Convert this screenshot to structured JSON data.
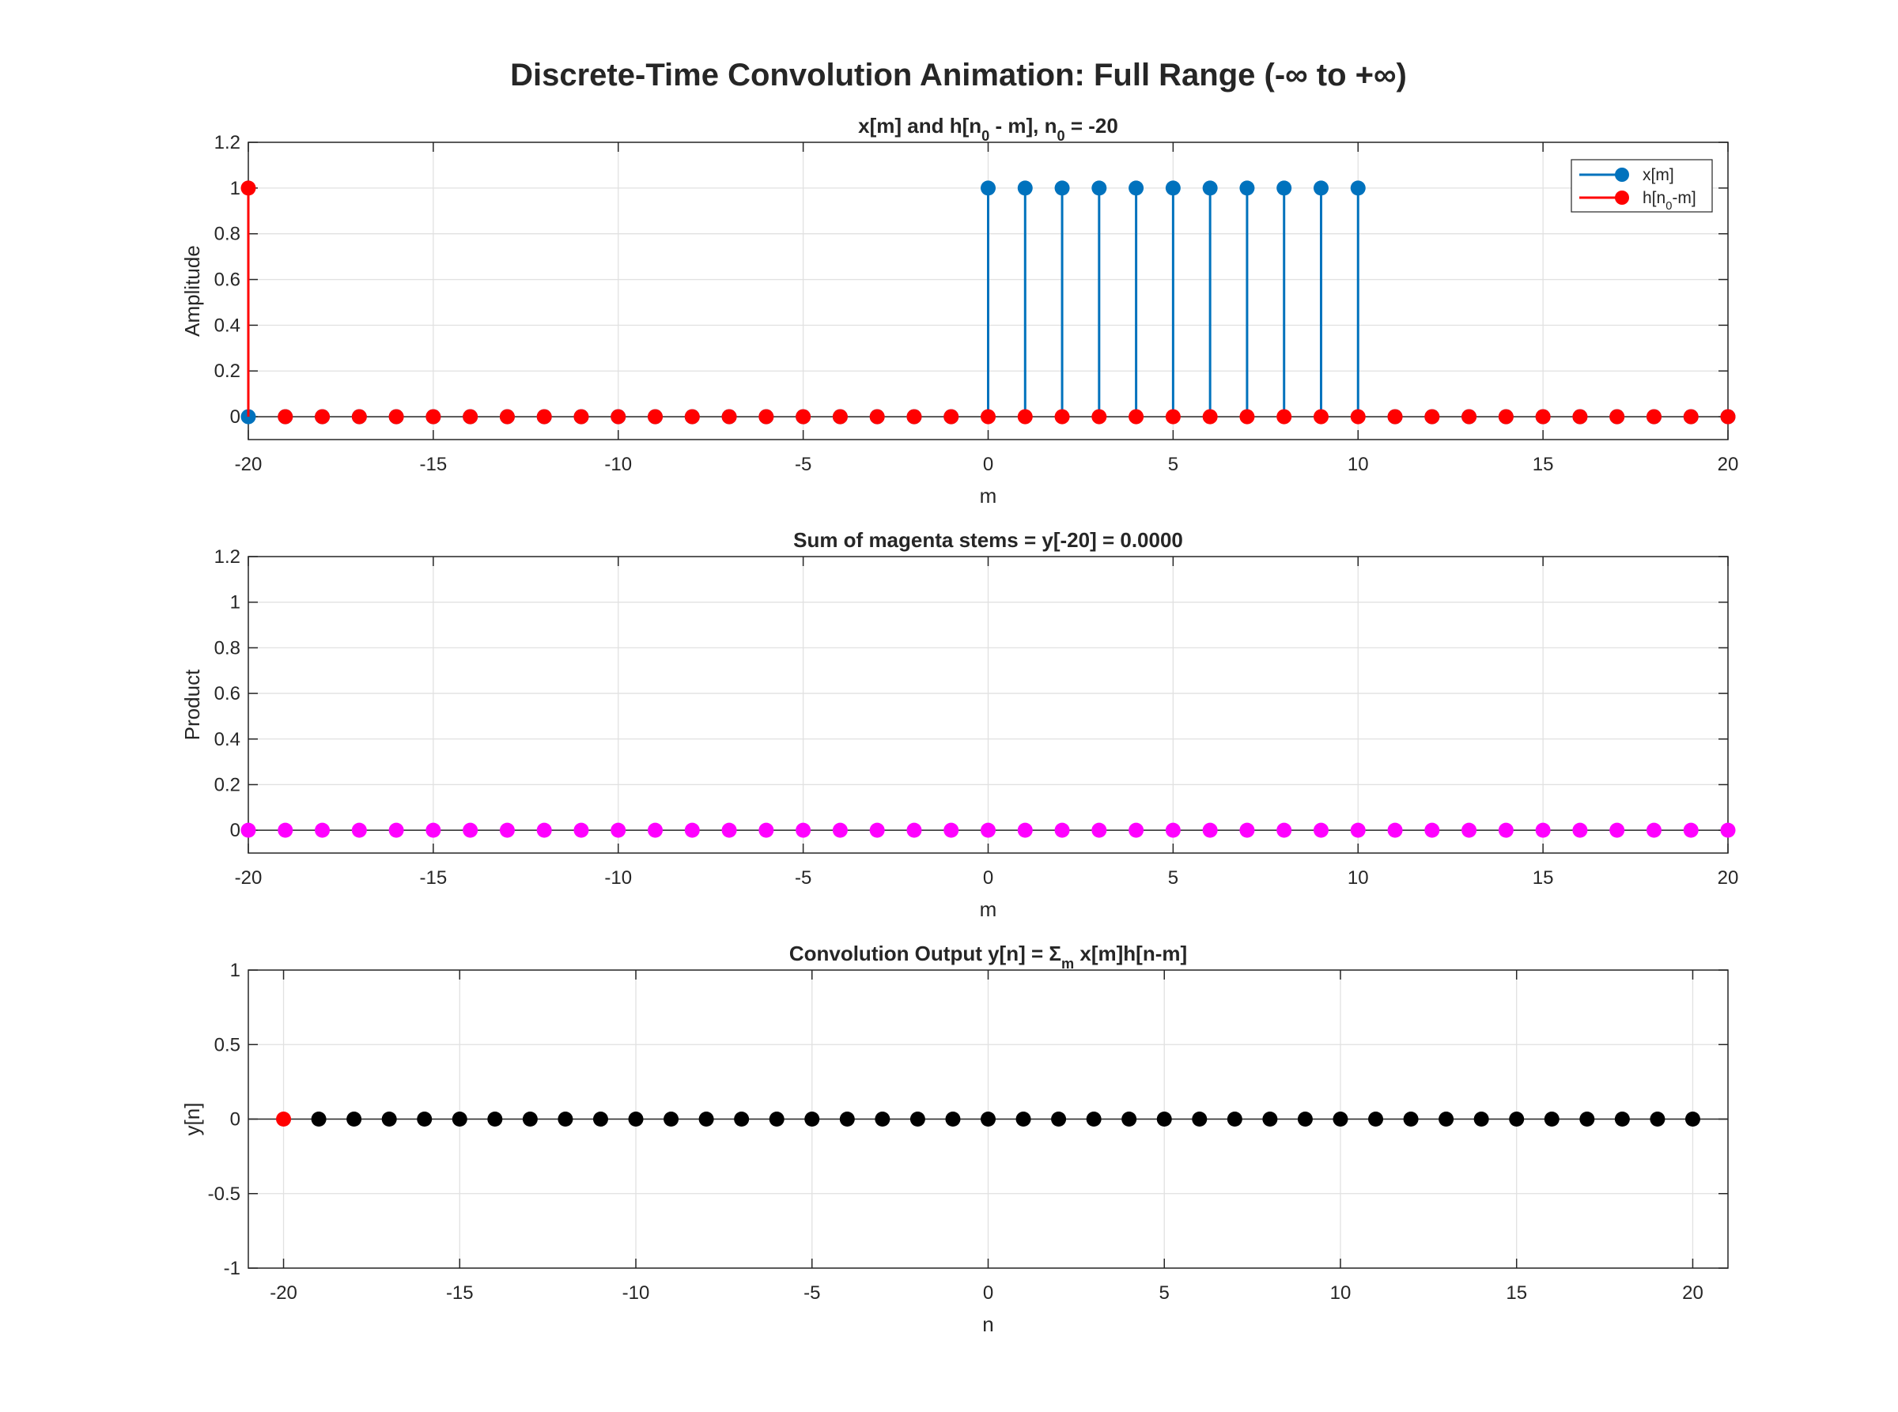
{
  "figure": {
    "title": "Discrete-Time Convolution Animation: Full Range (-∞ to +∞)"
  },
  "colors": {
    "x_series": "#0072BD",
    "h_series": "#FF0000",
    "product": "#FF00FF",
    "output": "#000000",
    "output_current": "#FF0000",
    "baseline": "#262626"
  },
  "chart_data": [
    {
      "id": "signals",
      "type": "stem",
      "title": {
        "pre": "x[m]  and  h[n",
        "sub": "0",
        "post": "  -  m],    n",
        "sub2": "0",
        "post2": "  =  -20"
      },
      "xlabel": "m",
      "ylabel": "Amplitude",
      "xlim": [
        -20,
        20
      ],
      "ylim": [
        -0.1,
        1.2
      ],
      "xticks": [
        -20,
        -15,
        -10,
        -5,
        0,
        5,
        10,
        15,
        20
      ],
      "yticks": [
        0,
        0.2,
        0.4,
        0.6,
        0.8,
        1,
        1.2
      ],
      "ytick_labels": [
        "0",
        "0.2",
        "0.4",
        "0.6",
        "0.8",
        "1",
        "1.2"
      ],
      "grid": true,
      "legend": {
        "placement": "top-right",
        "entries": [
          {
            "text": "x[m]",
            "series": 0
          },
          {
            "text_pre": "h[n",
            "text_sub": "0",
            "text_post": "-m]",
            "series": 1
          }
        ]
      },
      "series": [
        {
          "name": "x[m]",
          "color": "#0072BD",
          "x": [
            -20,
            -19,
            -18,
            -17,
            -16,
            -15,
            -14,
            -13,
            -12,
            -11,
            -10,
            -9,
            -8,
            -7,
            -6,
            -5,
            -4,
            -3,
            -2,
            -1,
            0,
            1,
            2,
            3,
            4,
            5,
            6,
            7,
            8,
            9,
            10,
            11,
            12,
            13,
            14,
            15,
            16,
            17,
            18,
            19,
            20
          ],
          "y": [
            0,
            0,
            0,
            0,
            0,
            0,
            0,
            0,
            0,
            0,
            0,
            0,
            0,
            0,
            0,
            0,
            0,
            0,
            0,
            0,
            1,
            1,
            1,
            1,
            1,
            1,
            1,
            1,
            1,
            1,
            1,
            0,
            0,
            0,
            0,
            0,
            0,
            0,
            0,
            0,
            0
          ]
        },
        {
          "name": "h[n0-m]",
          "color": "#FF0000",
          "x": [
            -20,
            -19,
            -18,
            -17,
            -16,
            -15,
            -14,
            -13,
            -12,
            -11,
            -10,
            -9,
            -8,
            -7,
            -6,
            -5,
            -4,
            -3,
            -2,
            -1,
            0,
            1,
            2,
            3,
            4,
            5,
            6,
            7,
            8,
            9,
            10,
            11,
            12,
            13,
            14,
            15,
            16,
            17,
            18,
            19,
            20
          ],
          "y": [
            1,
            0,
            0,
            0,
            0,
            0,
            0,
            0,
            0,
            0,
            0,
            0,
            0,
            0,
            0,
            0,
            0,
            0,
            0,
            0,
            0,
            0,
            0,
            0,
            0,
            0,
            0,
            0,
            0,
            0,
            0,
            0,
            0,
            0,
            0,
            0,
            0,
            0,
            0,
            0,
            0
          ]
        }
      ]
    },
    {
      "id": "product",
      "type": "stem",
      "title": "Sum of magenta stems = y[-20] = 0.0000",
      "xlabel": "m",
      "ylabel": "Product",
      "xlim": [
        -20,
        20
      ],
      "ylim": [
        -0.1,
        1.2
      ],
      "xticks": [
        -20,
        -15,
        -10,
        -5,
        0,
        5,
        10,
        15,
        20
      ],
      "yticks": [
        0,
        0.2,
        0.4,
        0.6,
        0.8,
        1,
        1.2
      ],
      "ytick_labels": [
        "0",
        "0.2",
        "0.4",
        "0.6",
        "0.8",
        "1",
        "1.2"
      ],
      "grid": true,
      "series": [
        {
          "color": "#FF00FF",
          "x": [
            -20,
            -19,
            -18,
            -17,
            -16,
            -15,
            -14,
            -13,
            -12,
            -11,
            -10,
            -9,
            -8,
            -7,
            -6,
            -5,
            -4,
            -3,
            -2,
            -1,
            0,
            1,
            2,
            3,
            4,
            5,
            6,
            7,
            8,
            9,
            10,
            11,
            12,
            13,
            14,
            15,
            16,
            17,
            18,
            19,
            20
          ],
          "y": [
            0,
            0,
            0,
            0,
            0,
            0,
            0,
            0,
            0,
            0,
            0,
            0,
            0,
            0,
            0,
            0,
            0,
            0,
            0,
            0,
            0,
            0,
            0,
            0,
            0,
            0,
            0,
            0,
            0,
            0,
            0,
            0,
            0,
            0,
            0,
            0,
            0,
            0,
            0,
            0,
            0
          ]
        }
      ]
    },
    {
      "id": "output",
      "type": "stem",
      "title": {
        "pre": "Convolution  Output  y[n]  =  Σ",
        "sub": "m",
        "post": "  x[m]h[n-m]"
      },
      "xlabel": "n",
      "ylabel": "y[n]",
      "xlim": [
        -21,
        21
      ],
      "ylim": [
        -1,
        1
      ],
      "xticks": [
        -20,
        -15,
        -10,
        -5,
        0,
        5,
        10,
        15,
        20
      ],
      "yticks": [
        -1,
        -0.5,
        0,
        0.5,
        1
      ],
      "ytick_labels": [
        "-1",
        "-0.5",
        "0",
        "0.5",
        "1"
      ],
      "grid": true,
      "current_n": -20,
      "series": [
        {
          "color": "#000000",
          "current_color": "#FF0000",
          "x": [
            -20,
            -19,
            -18,
            -17,
            -16,
            -15,
            -14,
            -13,
            -12,
            -11,
            -10,
            -9,
            -8,
            -7,
            -6,
            -5,
            -4,
            -3,
            -2,
            -1,
            0,
            1,
            2,
            3,
            4,
            5,
            6,
            7,
            8,
            9,
            10,
            11,
            12,
            13,
            14,
            15,
            16,
            17,
            18,
            19,
            20
          ],
          "y": [
            0,
            0,
            0,
            0,
            0,
            0,
            0,
            0,
            0,
            0,
            0,
            0,
            0,
            0,
            0,
            0,
            0,
            0,
            0,
            0,
            0,
            0,
            0,
            0,
            0,
            0,
            0,
            0,
            0,
            0,
            0,
            0,
            0,
            0,
            0,
            0,
            0,
            0,
            0,
            0,
            0
          ]
        }
      ]
    }
  ]
}
